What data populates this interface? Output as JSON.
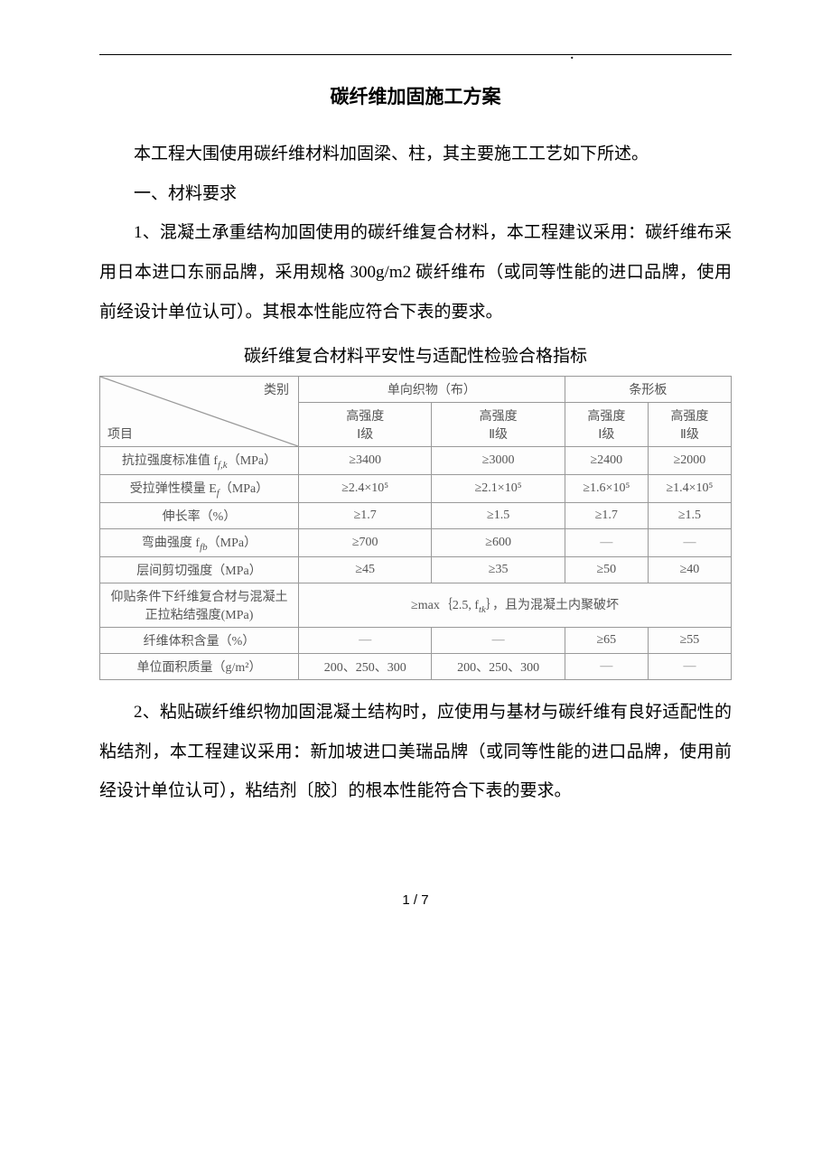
{
  "header_dot": ".",
  "title": "碳纤维加固施工方案",
  "para1": "本工程大围使用碳纤维材料加固梁、柱，其主要施工工艺如下所述。",
  "section1_heading": "一、材料要求",
  "para2": "1、混凝土承重结构加固使用的碳纤维复合材料，本工程建议采用：碳纤维布采用日本进口东丽品牌，采用规格 300g/m2 碳纤维布（或同等性能的进口品牌，使用前经设计单位认可）。其根本性能应符合下表的要求。",
  "table_caption": "碳纤维复合材料平安性与适配性检验合格指标",
  "table": {
    "diag_top": "类别",
    "diag_bottom": "项目",
    "group1": "单向织物（布）",
    "group2": "条形板",
    "sub_cols": [
      "高强度\nⅠ级",
      "高强度\nⅡ级",
      "高强度\nⅠ级",
      "高强度\nⅡ级"
    ],
    "rows": [
      {
        "label": "抗拉强度标准值 f",
        "label_sub": "f,k",
        "label_suffix": "（MPa）",
        "cells": [
          "≥3400",
          "≥3000",
          "≥2400",
          "≥2000"
        ]
      },
      {
        "label": "受拉弹性模量 E",
        "label_sub": "f",
        "label_suffix": "（MPa）",
        "cells": [
          "≥2.4×10⁵",
          "≥2.1×10⁵",
          "≥1.6×10⁵",
          "≥1.4×10⁵"
        ]
      },
      {
        "label": "伸长率（%）",
        "cells": [
          "≥1.7",
          "≥1.5",
          "≥1.7",
          "≥1.5"
        ]
      },
      {
        "label": "弯曲强度 f",
        "label_sub": "fb",
        "label_suffix": "（MPa）",
        "cells": [
          "≥700",
          "≥600",
          "—",
          "—"
        ]
      },
      {
        "label": "层间剪切强度（MPa）",
        "cells": [
          "≥45",
          "≥35",
          "≥50",
          "≥40"
        ]
      },
      {
        "label": "仰贴条件下纤维复合材与混凝土正拉粘结强度(MPa)",
        "merged": "≥max｛2.5, f",
        "merged_sub": "tk",
        "merged_suffix": "｝，且为混凝土内聚破坏"
      },
      {
        "label": "纤维体积含量（%）",
        "cells": [
          "—",
          "—",
          "≥65",
          "≥55"
        ]
      },
      {
        "label": "单位面积质量（g/m²）",
        "cells": [
          "200、250、300",
          "200、250、300",
          "—",
          "—"
        ]
      }
    ],
    "colors": {
      "border": "#999999",
      "cell_bg": "#fdfdfd",
      "text": "#555555"
    },
    "col_widths": [
      "220px",
      "110px",
      "110px",
      "110px",
      "110px"
    ]
  },
  "para3": "2、粘贴碳纤维织物加固混凝土结构时，应使用与基材与碳纤维有良好适配性的粘结剂，本工程建议采用：新加坡进口美瑞品牌（或同等性能的进口品牌，使用前经设计单位认可），粘结剂〔胶〕的根本性能符合下表的要求。",
  "page_number": "1 / 7"
}
